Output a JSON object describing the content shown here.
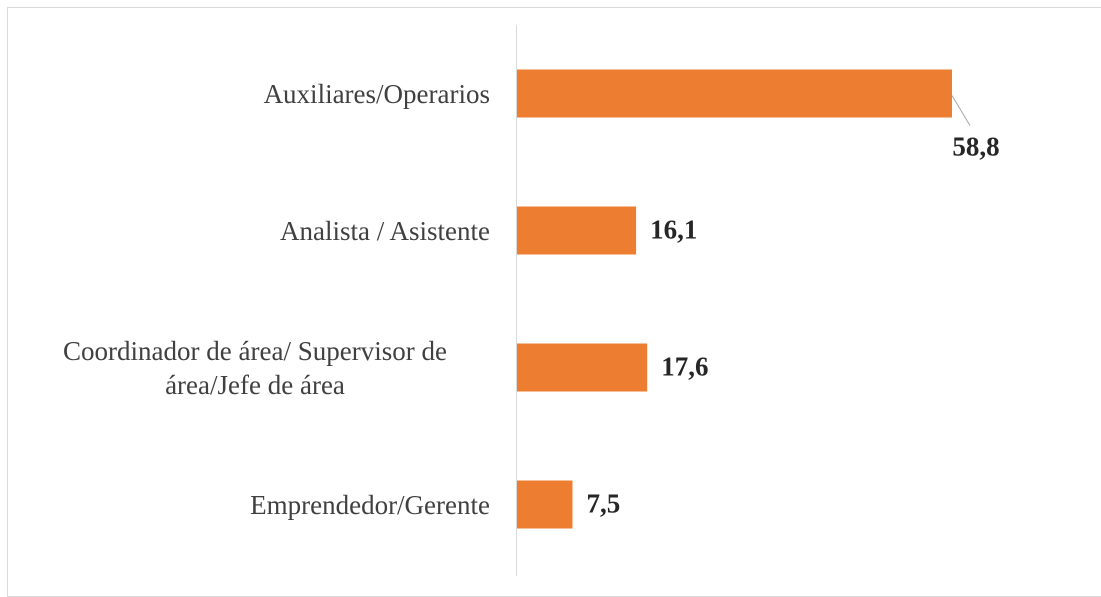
{
  "chart_data": {
    "type": "bar",
    "orientation": "horizontal",
    "categories": [
      "Auxiliares/Operarios",
      "Analista / Asistente",
      "Coordinador de área/ Supervisor de área/Jefe de área",
      "Emprendedor/Gerente"
    ],
    "values": [
      58.8,
      16.1,
      17.6,
      7.5
    ],
    "value_labels": [
      "58,8",
      "16,1",
      "17,6",
      "7,5"
    ],
    "color": "#ED7D31"
  }
}
